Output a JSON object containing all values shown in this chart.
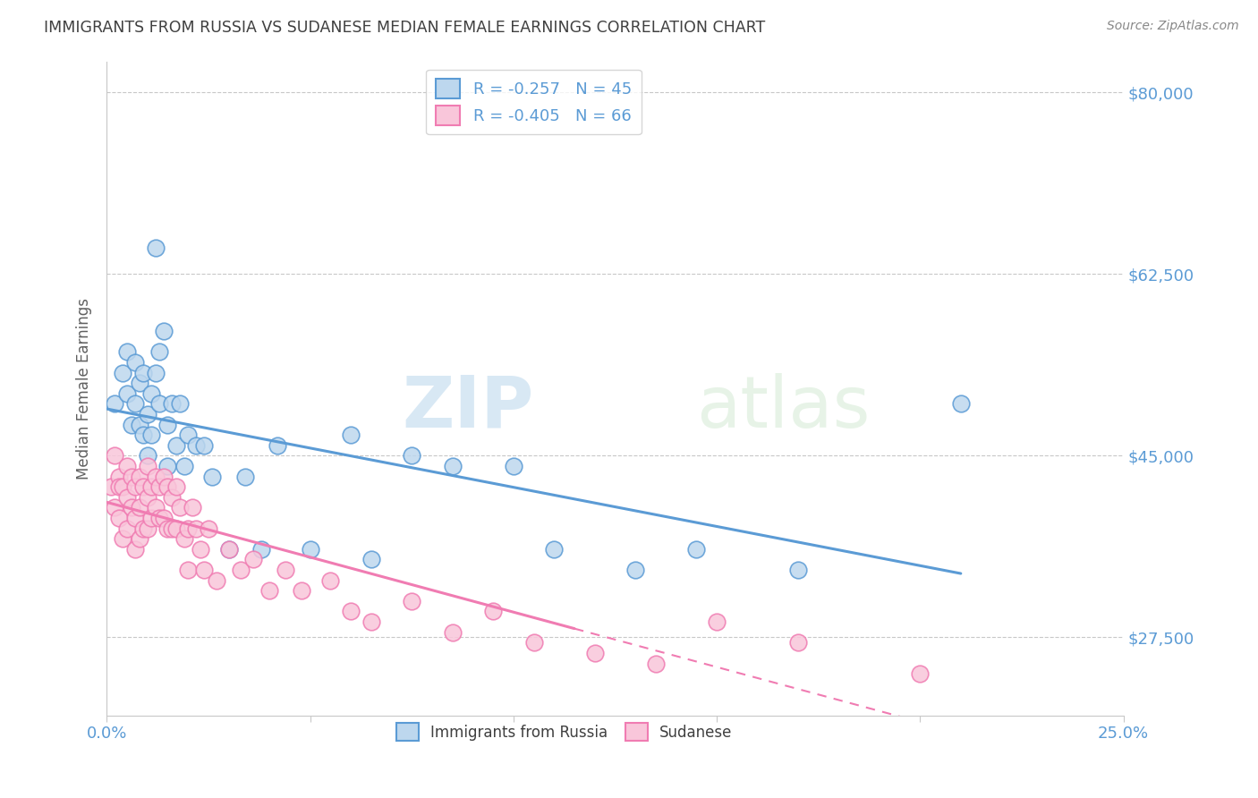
{
  "title": "IMMIGRANTS FROM RUSSIA VS SUDANESE MEDIAN FEMALE EARNINGS CORRELATION CHART",
  "source": "Source: ZipAtlas.com",
  "ylabel": "Median Female Earnings",
  "xlim": [
    0.0,
    0.25
  ],
  "ylim": [
    20000,
    83000
  ],
  "yticks": [
    27500,
    45000,
    62500,
    80000
  ],
  "ytick_labels": [
    "$27,500",
    "$45,000",
    "$62,500",
    "$80,000"
  ],
  "xticks": [
    0.0,
    0.05,
    0.1,
    0.15,
    0.2,
    0.25
  ],
  "xtick_labels": [
    "0.0%",
    "",
    "",
    "",
    "",
    "25.0%"
  ],
  "russia_color": "#5b9bd5",
  "russia_color_fill": "#bdd7ee",
  "sudanese_color": "#f07cb2",
  "sudanese_color_fill": "#f9c6da",
  "russia_R": -0.257,
  "russia_N": 45,
  "sudanese_R": -0.405,
  "sudanese_N": 66,
  "russia_x": [
    0.002,
    0.004,
    0.005,
    0.005,
    0.006,
    0.007,
    0.007,
    0.008,
    0.008,
    0.009,
    0.009,
    0.01,
    0.01,
    0.011,
    0.011,
    0.012,
    0.012,
    0.013,
    0.013,
    0.014,
    0.015,
    0.015,
    0.016,
    0.017,
    0.018,
    0.019,
    0.02,
    0.022,
    0.024,
    0.026,
    0.03,
    0.034,
    0.038,
    0.042,
    0.05,
    0.06,
    0.065,
    0.075,
    0.085,
    0.1,
    0.11,
    0.13,
    0.145,
    0.17,
    0.21
  ],
  "russia_y": [
    50000,
    53000,
    55000,
    51000,
    48000,
    54000,
    50000,
    52000,
    48000,
    47000,
    53000,
    49000,
    45000,
    51000,
    47000,
    53000,
    65000,
    55000,
    50000,
    57000,
    48000,
    44000,
    50000,
    46000,
    50000,
    44000,
    47000,
    46000,
    46000,
    43000,
    36000,
    43000,
    36000,
    46000,
    36000,
    47000,
    35000,
    45000,
    44000,
    44000,
    36000,
    34000,
    36000,
    34000,
    50000
  ],
  "sudanese_x": [
    0.001,
    0.002,
    0.002,
    0.003,
    0.003,
    0.003,
    0.004,
    0.004,
    0.005,
    0.005,
    0.005,
    0.006,
    0.006,
    0.007,
    0.007,
    0.007,
    0.008,
    0.008,
    0.008,
    0.009,
    0.009,
    0.01,
    0.01,
    0.01,
    0.011,
    0.011,
    0.012,
    0.012,
    0.013,
    0.013,
    0.014,
    0.014,
    0.015,
    0.015,
    0.016,
    0.016,
    0.017,
    0.017,
    0.018,
    0.019,
    0.02,
    0.02,
    0.021,
    0.022,
    0.023,
    0.024,
    0.025,
    0.027,
    0.03,
    0.033,
    0.036,
    0.04,
    0.044,
    0.048,
    0.055,
    0.06,
    0.065,
    0.075,
    0.085,
    0.095,
    0.105,
    0.12,
    0.135,
    0.15,
    0.17,
    0.2
  ],
  "sudanese_y": [
    42000,
    45000,
    40000,
    43000,
    42000,
    39000,
    42000,
    37000,
    44000,
    41000,
    38000,
    43000,
    40000,
    42000,
    39000,
    36000,
    43000,
    40000,
    37000,
    42000,
    38000,
    44000,
    41000,
    38000,
    42000,
    39000,
    43000,
    40000,
    42000,
    39000,
    43000,
    39000,
    42000,
    38000,
    41000,
    38000,
    42000,
    38000,
    40000,
    37000,
    38000,
    34000,
    40000,
    38000,
    36000,
    34000,
    38000,
    33000,
    36000,
    34000,
    35000,
    32000,
    34000,
    32000,
    33000,
    30000,
    29000,
    31000,
    28000,
    30000,
    27000,
    26000,
    25000,
    29000,
    27000,
    24000
  ],
  "legend_label_russia": "Immigrants from Russia",
  "legend_label_sudanese": "Sudanese",
  "watermark_zip": "ZIP",
  "watermark_atlas": "atlas",
  "background_color": "#ffffff",
  "grid_color": "#c8c8c8",
  "title_color": "#404040",
  "axis_label_color": "#606060",
  "tick_color": "#5b9bd5",
  "russia_trend_solid_end": 0.21,
  "sudanese_trend_solid_end": 0.115,
  "sudanese_trend_dash_end": 0.255
}
